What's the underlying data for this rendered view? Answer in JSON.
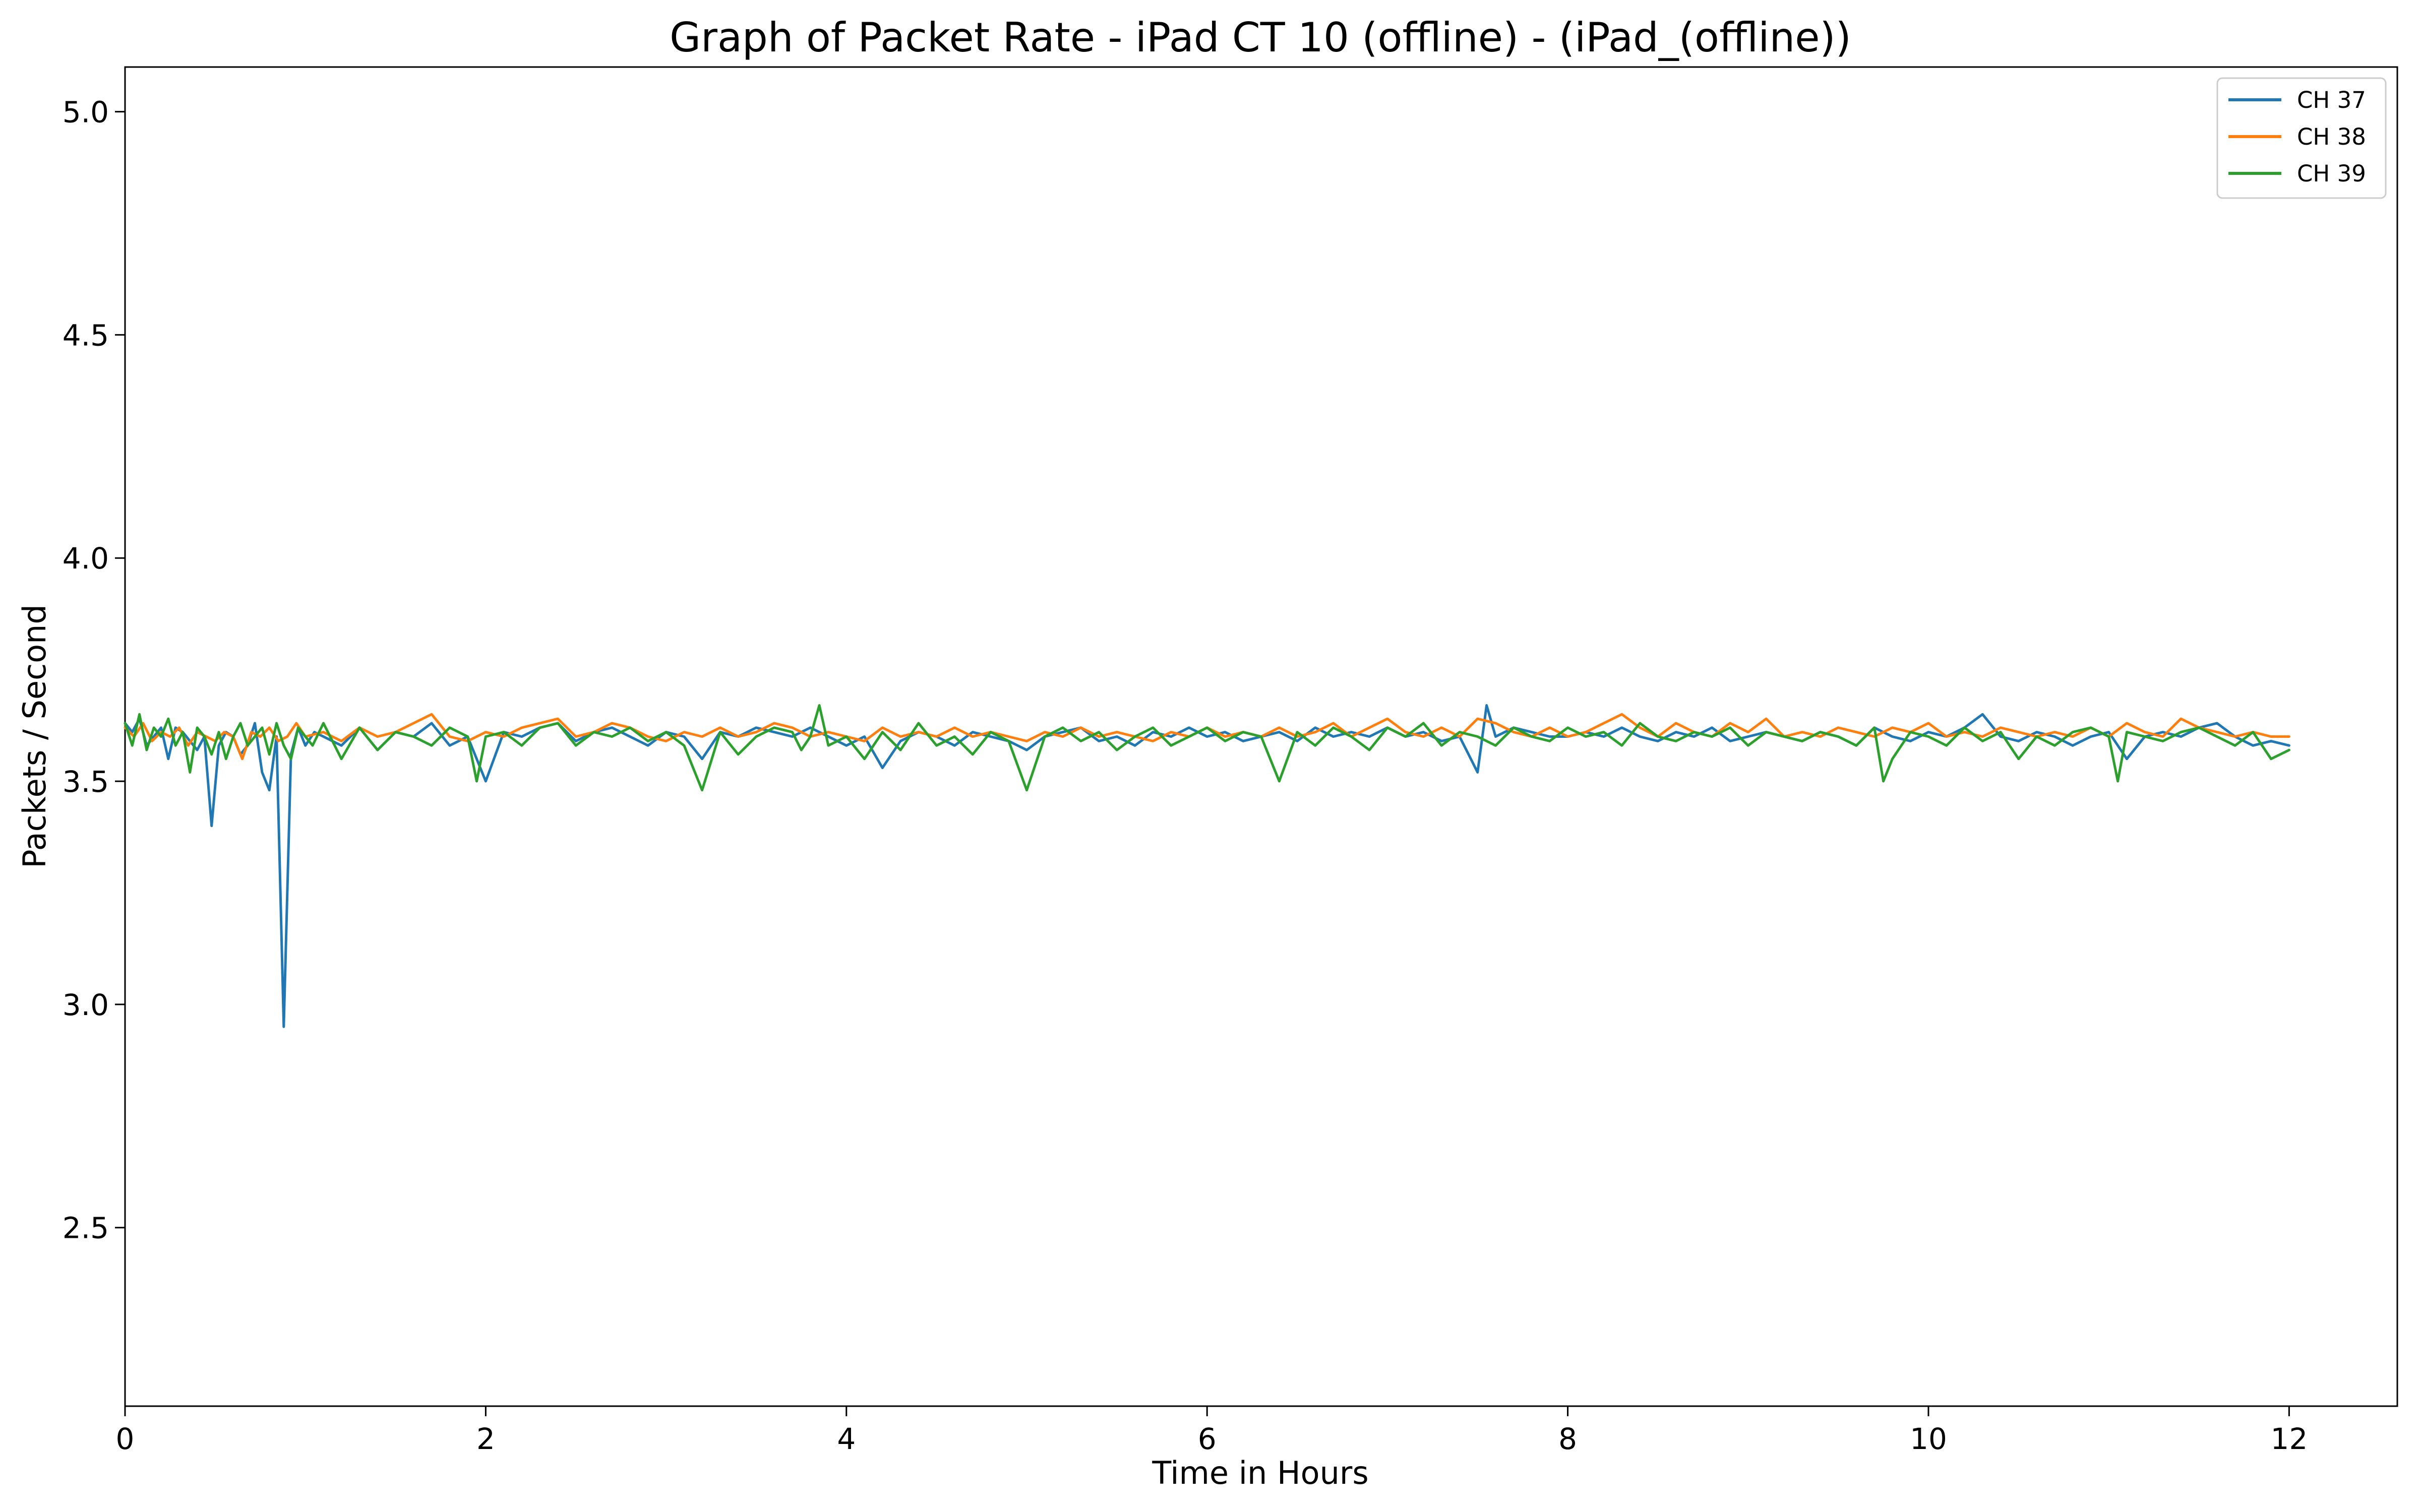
{
  "chart_data": {
    "type": "line",
    "title": "Graph of Packet Rate - iPad CT 10 (offline) - (iPad_(offline))",
    "xlabel": "Time in Hours",
    "ylabel": "Packets / Second",
    "xlim": [
      0,
      12.6
    ],
    "ylim": [
      2.1,
      5.1
    ],
    "xticks": [
      0,
      2,
      4,
      6,
      8,
      10,
      12
    ],
    "xtick_labels": [
      "0",
      "2",
      "4",
      "6",
      "8",
      "10",
      "12"
    ],
    "yticks": [
      2.5,
      3.0,
      3.5,
      4.0,
      4.5,
      5.0
    ],
    "ytick_labels": [
      "2.5",
      "3.0",
      "3.5",
      "4.0",
      "4.5",
      "5.0"
    ],
    "grid": false,
    "legend": {
      "position": "top-right"
    },
    "series": [
      {
        "name": "CH 37",
        "color": "#1f77b4",
        "x": [
          0.0,
          0.04,
          0.08,
          0.12,
          0.16,
          0.2,
          0.24,
          0.28,
          0.32,
          0.36,
          0.4,
          0.44,
          0.48,
          0.52,
          0.56,
          0.6,
          0.64,
          0.68,
          0.72,
          0.76,
          0.8,
          0.84,
          0.88,
          0.92,
          0.96,
          1.0,
          1.05,
          1.1,
          1.2,
          1.3,
          1.4,
          1.5,
          1.6,
          1.7,
          1.8,
          1.9,
          2.0,
          2.1,
          2.2,
          2.3,
          2.4,
          2.5,
          2.6,
          2.7,
          2.8,
          2.9,
          3.0,
          3.1,
          3.2,
          3.3,
          3.4,
          3.5,
          3.6,
          3.7,
          3.8,
          3.9,
          4.0,
          4.1,
          4.2,
          4.3,
          4.4,
          4.5,
          4.6,
          4.7,
          4.8,
          4.9,
          5.0,
          5.1,
          5.2,
          5.3,
          5.4,
          5.5,
          5.6,
          5.7,
          5.8,
          5.9,
          6.0,
          6.1,
          6.2,
          6.3,
          6.4,
          6.5,
          6.6,
          6.7,
          6.8,
          6.9,
          7.0,
          7.1,
          7.2,
          7.3,
          7.4,
          7.45,
          7.5,
          7.55,
          7.6,
          7.7,
          7.8,
          7.9,
          8.0,
          8.1,
          8.2,
          8.3,
          8.4,
          8.5,
          8.6,
          8.7,
          8.8,
          8.9,
          9.0,
          9.1,
          9.2,
          9.3,
          9.4,
          9.5,
          9.6,
          9.7,
          9.8,
          9.9,
          10.0,
          10.1,
          10.2,
          10.3,
          10.4,
          10.5,
          10.6,
          10.7,
          10.8,
          10.9,
          11.0,
          11.1,
          11.2,
          11.3,
          11.4,
          11.5,
          11.6,
          11.7,
          11.8,
          11.9,
          12.0
        ],
        "y": [
          3.63,
          3.61,
          3.64,
          3.58,
          3.6,
          3.62,
          3.55,
          3.62,
          3.61,
          3.59,
          3.57,
          3.6,
          3.4,
          3.58,
          3.61,
          3.6,
          3.56,
          3.58,
          3.63,
          3.52,
          3.48,
          3.6,
          2.95,
          3.56,
          3.62,
          3.58,
          3.61,
          3.6,
          3.58,
          3.62,
          3.57,
          3.61,
          3.6,
          3.63,
          3.58,
          3.6,
          3.5,
          3.61,
          3.6,
          3.62,
          3.63,
          3.59,
          3.61,
          3.62,
          3.6,
          3.58,
          3.61,
          3.6,
          3.55,
          3.61,
          3.6,
          3.62,
          3.61,
          3.6,
          3.62,
          3.6,
          3.58,
          3.6,
          3.53,
          3.59,
          3.61,
          3.6,
          3.58,
          3.61,
          3.6,
          3.59,
          3.57,
          3.6,
          3.61,
          3.62,
          3.59,
          3.6,
          3.58,
          3.61,
          3.6,
          3.62,
          3.6,
          3.61,
          3.59,
          3.6,
          3.61,
          3.59,
          3.62,
          3.6,
          3.61,
          3.6,
          3.62,
          3.6,
          3.61,
          3.59,
          3.6,
          3.56,
          3.52,
          3.67,
          3.6,
          3.62,
          3.61,
          3.6,
          3.6,
          3.61,
          3.6,
          3.62,
          3.6,
          3.59,
          3.61,
          3.6,
          3.62,
          3.59,
          3.6,
          3.61,
          3.6,
          3.59,
          3.61,
          3.6,
          3.58,
          3.62,
          3.6,
          3.59,
          3.61,
          3.6,
          3.62,
          3.65,
          3.6,
          3.59,
          3.61,
          3.6,
          3.58,
          3.6,
          3.61,
          3.55,
          3.6,
          3.61,
          3.6,
          3.62,
          3.63,
          3.6,
          3.58,
          3.59,
          3.58
        ]
      },
      {
        "name": "CH 38",
        "color": "#ff7f0e",
        "x": [
          0.0,
          0.05,
          0.1,
          0.15,
          0.2,
          0.25,
          0.3,
          0.35,
          0.4,
          0.45,
          0.5,
          0.55,
          0.6,
          0.65,
          0.7,
          0.75,
          0.8,
          0.85,
          0.9,
          0.95,
          1.0,
          1.1,
          1.2,
          1.3,
          1.4,
          1.5,
          1.6,
          1.7,
          1.8,
          1.9,
          2.0,
          2.1,
          2.2,
          2.3,
          2.4,
          2.5,
          2.6,
          2.7,
          2.8,
          2.9,
          3.0,
          3.1,
          3.2,
          3.3,
          3.4,
          3.5,
          3.6,
          3.7,
          3.8,
          3.9,
          4.0,
          4.1,
          4.2,
          4.3,
          4.4,
          4.5,
          4.6,
          4.7,
          4.8,
          4.9,
          5.0,
          5.1,
          5.2,
          5.3,
          5.4,
          5.5,
          5.6,
          5.7,
          5.8,
          5.9,
          6.0,
          6.1,
          6.2,
          6.3,
          6.4,
          6.5,
          6.6,
          6.7,
          6.8,
          6.9,
          7.0,
          7.1,
          7.2,
          7.3,
          7.4,
          7.5,
          7.6,
          7.7,
          7.8,
          7.9,
          8.0,
          8.1,
          8.2,
          8.3,
          8.4,
          8.5,
          8.6,
          8.7,
          8.8,
          8.9,
          9.0,
          9.1,
          9.2,
          9.3,
          9.4,
          9.5,
          9.6,
          9.7,
          9.8,
          9.9,
          10.0,
          10.1,
          10.2,
          10.3,
          10.4,
          10.5,
          10.6,
          10.7,
          10.8,
          10.9,
          11.0,
          11.1,
          11.2,
          11.3,
          11.4,
          11.5,
          11.6,
          11.7,
          11.8,
          11.9,
          12.0
        ],
        "y": [
          3.62,
          3.6,
          3.63,
          3.59,
          3.61,
          3.6,
          3.62,
          3.58,
          3.61,
          3.6,
          3.59,
          3.61,
          3.6,
          3.55,
          3.61,
          3.6,
          3.62,
          3.59,
          3.6,
          3.63,
          3.6,
          3.61,
          3.59,
          3.62,
          3.6,
          3.61,
          3.63,
          3.65,
          3.6,
          3.59,
          3.61,
          3.6,
          3.62,
          3.63,
          3.64,
          3.6,
          3.61,
          3.63,
          3.62,
          3.6,
          3.59,
          3.61,
          3.6,
          3.62,
          3.6,
          3.61,
          3.63,
          3.62,
          3.6,
          3.61,
          3.6,
          3.59,
          3.62,
          3.6,
          3.61,
          3.6,
          3.62,
          3.6,
          3.61,
          3.6,
          3.59,
          3.61,
          3.6,
          3.62,
          3.6,
          3.61,
          3.6,
          3.59,
          3.61,
          3.6,
          3.62,
          3.6,
          3.61,
          3.6,
          3.62,
          3.6,
          3.61,
          3.63,
          3.6,
          3.62,
          3.64,
          3.61,
          3.6,
          3.62,
          3.6,
          3.64,
          3.63,
          3.61,
          3.6,
          3.62,
          3.6,
          3.61,
          3.63,
          3.65,
          3.62,
          3.6,
          3.63,
          3.61,
          3.6,
          3.63,
          3.61,
          3.64,
          3.6,
          3.61,
          3.6,
          3.62,
          3.61,
          3.6,
          3.62,
          3.61,
          3.63,
          3.6,
          3.61,
          3.6,
          3.62,
          3.61,
          3.6,
          3.61,
          3.6,
          3.62,
          3.6,
          3.63,
          3.61,
          3.6,
          3.64,
          3.62,
          3.61,
          3.6,
          3.61,
          3.6,
          3.6
        ]
      },
      {
        "name": "CH 39",
        "color": "#2ca02c",
        "x": [
          0.0,
          0.04,
          0.08,
          0.12,
          0.16,
          0.2,
          0.24,
          0.28,
          0.32,
          0.36,
          0.4,
          0.44,
          0.48,
          0.52,
          0.56,
          0.6,
          0.64,
          0.68,
          0.72,
          0.76,
          0.8,
          0.84,
          0.88,
          0.92,
          0.96,
          1.0,
          1.04,
          1.1,
          1.2,
          1.3,
          1.4,
          1.5,
          1.6,
          1.7,
          1.8,
          1.9,
          1.95,
          2.0,
          2.1,
          2.2,
          2.3,
          2.4,
          2.5,
          2.6,
          2.7,
          2.8,
          2.9,
          3.0,
          3.1,
          3.2,
          3.3,
          3.4,
          3.5,
          3.6,
          3.7,
          3.75,
          3.8,
          3.85,
          3.9,
          4.0,
          4.1,
          4.2,
          4.3,
          4.4,
          4.5,
          4.6,
          4.7,
          4.8,
          4.9,
          5.0,
          5.1,
          5.2,
          5.3,
          5.4,
          5.5,
          5.6,
          5.7,
          5.8,
          5.9,
          6.0,
          6.1,
          6.2,
          6.3,
          6.4,
          6.5,
          6.6,
          6.7,
          6.8,
          6.9,
          7.0,
          7.1,
          7.2,
          7.3,
          7.4,
          7.5,
          7.6,
          7.7,
          7.8,
          7.9,
          8.0,
          8.1,
          8.2,
          8.3,
          8.4,
          8.5,
          8.6,
          8.7,
          8.8,
          8.9,
          9.0,
          9.1,
          9.2,
          9.3,
          9.4,
          9.5,
          9.6,
          9.7,
          9.75,
          9.8,
          9.9,
          10.0,
          10.1,
          10.2,
          10.3,
          10.4,
          10.5,
          10.6,
          10.7,
          10.8,
          10.9,
          11.0,
          11.05,
          11.1,
          11.2,
          11.3,
          11.4,
          11.5,
          11.6,
          11.7,
          11.8,
          11.9,
          12.0
        ],
        "y": [
          3.63,
          3.58,
          3.65,
          3.57,
          3.62,
          3.6,
          3.64,
          3.58,
          3.61,
          3.52,
          3.62,
          3.6,
          3.56,
          3.61,
          3.55,
          3.6,
          3.63,
          3.58,
          3.6,
          3.62,
          3.56,
          3.63,
          3.58,
          3.55,
          3.62,
          3.6,
          3.58,
          3.63,
          3.55,
          3.62,
          3.57,
          3.61,
          3.6,
          3.58,
          3.62,
          3.6,
          3.5,
          3.6,
          3.61,
          3.58,
          3.62,
          3.63,
          3.58,
          3.61,
          3.6,
          3.62,
          3.59,
          3.61,
          3.58,
          3.48,
          3.61,
          3.56,
          3.6,
          3.62,
          3.61,
          3.57,
          3.6,
          3.67,
          3.58,
          3.6,
          3.55,
          3.61,
          3.57,
          3.63,
          3.58,
          3.6,
          3.56,
          3.61,
          3.59,
          3.48,
          3.6,
          3.62,
          3.59,
          3.61,
          3.57,
          3.6,
          3.62,
          3.58,
          3.6,
          3.62,
          3.59,
          3.61,
          3.6,
          3.5,
          3.61,
          3.58,
          3.62,
          3.6,
          3.57,
          3.62,
          3.6,
          3.63,
          3.58,
          3.61,
          3.6,
          3.58,
          3.62,
          3.6,
          3.59,
          3.62,
          3.6,
          3.61,
          3.58,
          3.63,
          3.6,
          3.59,
          3.61,
          3.6,
          3.62,
          3.58,
          3.61,
          3.6,
          3.59,
          3.61,
          3.6,
          3.58,
          3.62,
          3.5,
          3.55,
          3.61,
          3.6,
          3.58,
          3.62,
          3.59,
          3.61,
          3.55,
          3.6,
          3.58,
          3.61,
          3.62,
          3.6,
          3.5,
          3.61,
          3.6,
          3.59,
          3.61,
          3.62,
          3.6,
          3.58,
          3.61,
          3.55,
          3.57
        ]
      }
    ]
  }
}
